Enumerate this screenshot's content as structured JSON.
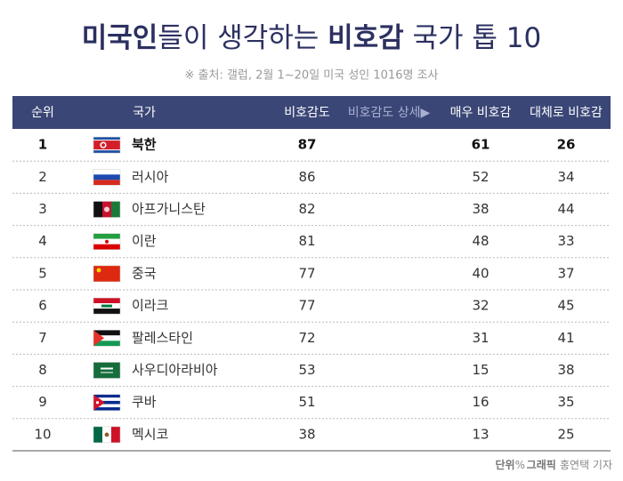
{
  "header": {
    "title_parts": [
      "미국인",
      "들이 생각하는 ",
      "비호감",
      " 국가 톱 10"
    ],
    "source": "※ 출처: 갤럽, 2월 1~20일 미국 성인 1016명 조사"
  },
  "table": {
    "columns": [
      "순위",
      "국가",
      "비호감도",
      "비호감도 상세▶",
      "매우 비호감",
      "대체로 비호감"
    ],
    "rows": [
      [
        "1",
        "북한",
        "87",
        "61",
        "26"
      ],
      [
        "2",
        "러시아",
        "86",
        "52",
        "34"
      ],
      [
        "3",
        "아프가니스탄",
        "82",
        "38",
        "44"
      ],
      [
        "4",
        "이란",
        "81",
        "48",
        "33"
      ],
      [
        "5",
        "중국",
        "77",
        "40",
        "37"
      ],
      [
        "6",
        "이라크",
        "77",
        "32",
        "45"
      ],
      [
        "7",
        "팔레스타인",
        "72",
        "31",
        "41"
      ],
      [
        "8",
        "사우디아라비아",
        "53",
        "15",
        "38"
      ],
      [
        "9",
        "쿠바",
        "51",
        "16",
        "35"
      ],
      [
        "10",
        "멕시코",
        "38",
        "13",
        "25"
      ]
    ]
  },
  "footer": {
    "unit_label": "단위",
    "unit": "%",
    "credit_label": "그래픽 ",
    "credit": "홍연택 기자"
  }
}
